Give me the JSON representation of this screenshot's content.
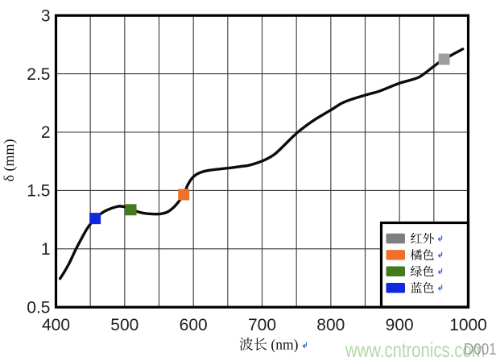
{
  "chart_data": {
    "type": "line",
    "title": "",
    "xlabel": "波长 (nm)",
    "ylabel": "δ (mm)",
    "xlim": [
      400,
      1000
    ],
    "ylim": [
      0.5,
      3
    ],
    "x_ticks": [
      400,
      500,
      600,
      700,
      800,
      900,
      1000
    ],
    "y_ticks": [
      0.5,
      1,
      1.5,
      2,
      2.5,
      3
    ],
    "x_minor_grid_step_nm": 50,
    "y_grid_step_mm": 0.5,
    "grid": "on",
    "legend_position": "bottom-right",
    "series": [
      {
        "name": "penetration-depth",
        "color": "#0b0b0b",
        "points": [
          [
            406,
            0.745
          ],
          [
            412,
            0.8
          ],
          [
            420,
            0.885
          ],
          [
            428,
            0.985
          ],
          [
            436,
            1.075
          ],
          [
            444,
            1.16
          ],
          [
            451,
            1.22
          ],
          [
            457,
            1.26
          ],
          [
            464,
            1.295
          ],
          [
            472,
            1.325
          ],
          [
            482,
            1.35
          ],
          [
            492,
            1.365
          ],
          [
            500,
            1.36
          ],
          [
            509,
            1.34
          ],
          [
            518,
            1.32
          ],
          [
            528,
            1.305
          ],
          [
            540,
            1.298
          ],
          [
            552,
            1.3
          ],
          [
            562,
            1.315
          ],
          [
            572,
            1.36
          ],
          [
            580,
            1.415
          ],
          [
            586,
            1.465
          ],
          [
            592,
            1.55
          ],
          [
            598,
            1.605
          ],
          [
            605,
            1.64
          ],
          [
            613,
            1.66
          ],
          [
            625,
            1.675
          ],
          [
            640,
            1.685
          ],
          [
            655,
            1.695
          ],
          [
            668,
            1.705
          ],
          [
            680,
            1.715
          ],
          [
            692,
            1.735
          ],
          [
            705,
            1.765
          ],
          [
            718,
            1.81
          ],
          [
            730,
            1.875
          ],
          [
            742,
            1.945
          ],
          [
            752,
            2.0
          ],
          [
            764,
            2.055
          ],
          [
            776,
            2.105
          ],
          [
            790,
            2.155
          ],
          [
            803,
            2.2
          ],
          [
            815,
            2.245
          ],
          [
            827,
            2.275
          ],
          [
            840,
            2.3
          ],
          [
            855,
            2.325
          ],
          [
            870,
            2.35
          ],
          [
            885,
            2.385
          ],
          [
            900,
            2.42
          ],
          [
            915,
            2.445
          ],
          [
            928,
            2.47
          ],
          [
            938,
            2.51
          ],
          [
            948,
            2.555
          ],
          [
            958,
            2.6
          ],
          [
            965,
            2.625
          ],
          [
            977,
            2.665
          ],
          [
            985,
            2.69
          ],
          [
            992,
            2.712
          ]
        ]
      }
    ],
    "markers": [
      {
        "name": "blue",
        "label": "蓝色",
        "x": 457,
        "y": 1.26,
        "color": "#1128e0"
      },
      {
        "name": "green",
        "label": "绿色",
        "x": 509,
        "y": 1.335,
        "color": "#44791e"
      },
      {
        "name": "orange",
        "label": "橘色",
        "x": 586,
        "y": 1.465,
        "color": "#ed7128"
      },
      {
        "name": "infrared",
        "label": "红外",
        "x": 965,
        "y": 2.625,
        "color": "#9e9e9e"
      }
    ],
    "legend": [
      {
        "name": "infrared",
        "label": "红外",
        "color": "#7f7f7f"
      },
      {
        "name": "orange",
        "label": "橘色",
        "color": "#ed7128"
      },
      {
        "name": "green",
        "label": "绿色",
        "color": "#44791e"
      },
      {
        "name": "blue",
        "label": "蓝色",
        "color": "#1128e0"
      }
    ]
  },
  "watermark": "www.cntronics.com",
  "icons": {
    "line_break_mark": "return-arrow"
  },
  "figure_id": "D001",
  "colors": {
    "grid": "#383838",
    "frame": "#000000",
    "tick_label": "#1f1f1f",
    "watermark_green": "#aed7a4",
    "figure_id_gray": "#8f8f8f",
    "break_mark_blue": "#3b6cc7"
  }
}
